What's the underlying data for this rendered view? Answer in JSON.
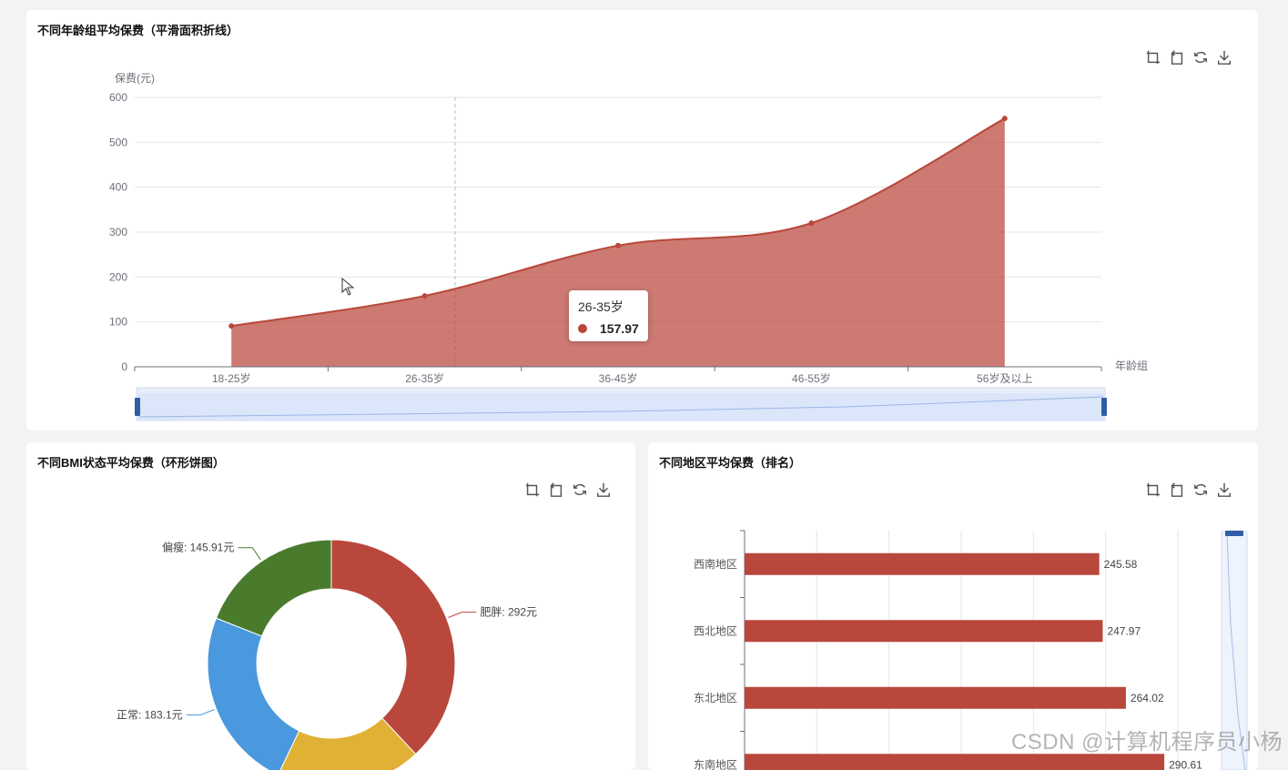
{
  "colors": {
    "accent": "#b9473b",
    "green": "#4a7b2d",
    "blue": "#4a98dd",
    "yellow": "#e0b134",
    "axis": "#6e7079",
    "grid": "#e0e6f1",
    "zoom": "#2f5ea5"
  },
  "toolbox_icons": [
    "zoom-area-icon",
    "zoom-reset-icon",
    "restore-icon",
    "download-icon"
  ],
  "age_chart": {
    "title": "不同年龄组平均保费（平滑面积折线）",
    "ylabel": "保费(元)",
    "xlabel": "年龄组",
    "chart_data": {
      "type": "area",
      "categories": [
        "18-25岁",
        "26-35岁",
        "36-45岁",
        "46-55岁",
        "56岁及以上"
      ],
      "values": [
        91,
        157.97,
        270,
        320,
        553
      ],
      "yticks": [
        0,
        100,
        200,
        300,
        400,
        500,
        600
      ],
      "ylim": [
        0,
        600
      ],
      "grid": true,
      "smooth": true
    },
    "tooltip": {
      "title": "26-35岁",
      "value": "157.97"
    }
  },
  "bmi_chart": {
    "title": "不同BMI状态平均保费（环形饼图）",
    "chart_data": {
      "type": "pie",
      "slices": [
        {
          "name": "肥胖",
          "value": 292,
          "label": "肥胖: 292元",
          "color": "#b9473b"
        },
        {
          "name": "",
          "value": 145.91,
          "label": "",
          "color": "#e0b134"
        },
        {
          "name": "正常",
          "value": 183.1,
          "label": "正常: 183.1元",
          "color": "#4a98dd"
        },
        {
          "name": "偏瘦",
          "value": 145.91,
          "label": "偏瘦: 145.91元",
          "color": "#4a7b2d"
        }
      ]
    }
  },
  "region_chart": {
    "title": "不同地区平均保费（排名）",
    "chart_data": {
      "type": "bar",
      "orientation": "horizontal",
      "categories": [
        "西南地区",
        "西北地区",
        "东北地区",
        "东南地区"
      ],
      "values": [
        245.58,
        247.97,
        264.02,
        290.61
      ],
      "labels": [
        "245.58",
        "247.97",
        "264.02",
        "290.61"
      ],
      "xlim": [
        0,
        300
      ],
      "grid": true
    }
  },
  "watermark": "CSDN @计算机程序员小杨"
}
